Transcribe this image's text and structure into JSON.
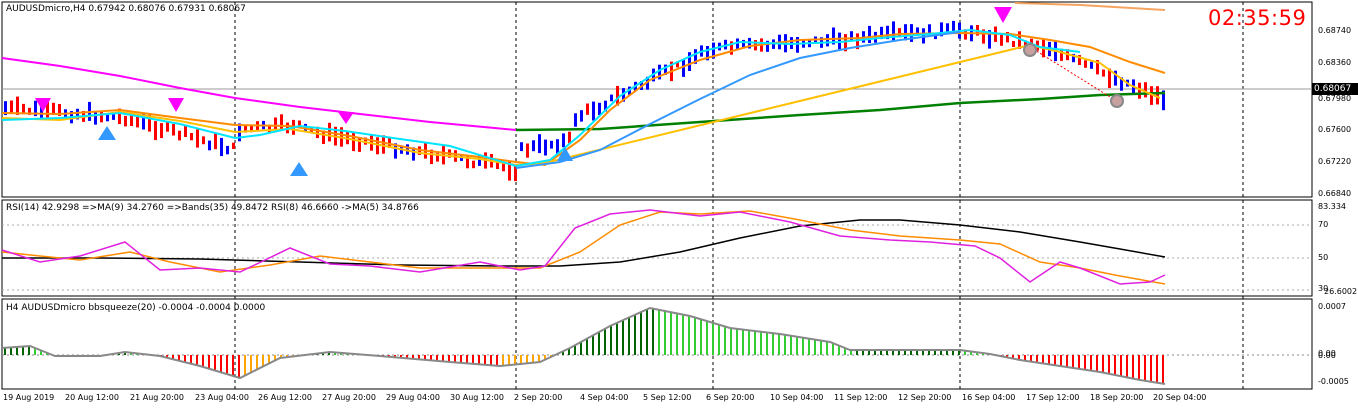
{
  "main_panel": {
    "header": "AUDUSDmicro,H4  0.67942 0.68076 0.67931 0.68067",
    "price_labels": [
      "0.68740",
      "0.68360",
      "0.67980",
      "0.67600",
      "0.67220",
      "0.66840"
    ],
    "current_price": "0.68067",
    "clock": "02:35:59"
  },
  "rsi_panel": {
    "header": "RSI(14) 42.9298  =>MA(9) 34.2760  =>Bands(35) 49.8472  RSI(8) 46.6660  ->MA(5) 34.8766",
    "levels": [
      "83.334",
      "70",
      "50",
      "30",
      "26.6002"
    ]
  },
  "squeeze_panel": {
    "header": "H4 AUDUSDmicro bbsqueeze(20) -0.0004 -0.0004 0.0000",
    "levels": [
      "0.0007",
      "0.00",
      "0.00",
      "-0.0005"
    ]
  },
  "time_axis": [
    "19 Aug 2019",
    "20 Aug 12:00",
    "21 Aug 20:00",
    "23 Aug 04:00",
    "26 Aug 12:00",
    "27 Aug 20:00",
    "29 Aug 04:00",
    "30 Aug 12:00",
    "2 Sep 20:00",
    "4 Sep 04:00",
    "5 Sep 12:00",
    "6 Sep 20:00",
    "10 Sep 04:00",
    "11 Sep 12:00",
    "12 Sep 20:00",
    "16 Sep 04:00",
    "17 Sep 12:00",
    "18 Sep 20:00",
    "20 Sep 04:00"
  ],
  "colors": {
    "bull_bar": "#0000ff",
    "bear_bar": "#ff0000",
    "ma_magenta": "#ff00ff",
    "ma_green": "#008000",
    "ma_orange": "#ff8c00",
    "ma_cyan": "#00e5ff",
    "ma_blue": "#3399ff",
    "squeeze_dark_green": "#006400",
    "squeeze_lime": "#32cd32",
    "squeeze_red": "#ff0000",
    "squeeze_orange": "#ffa500"
  }
}
